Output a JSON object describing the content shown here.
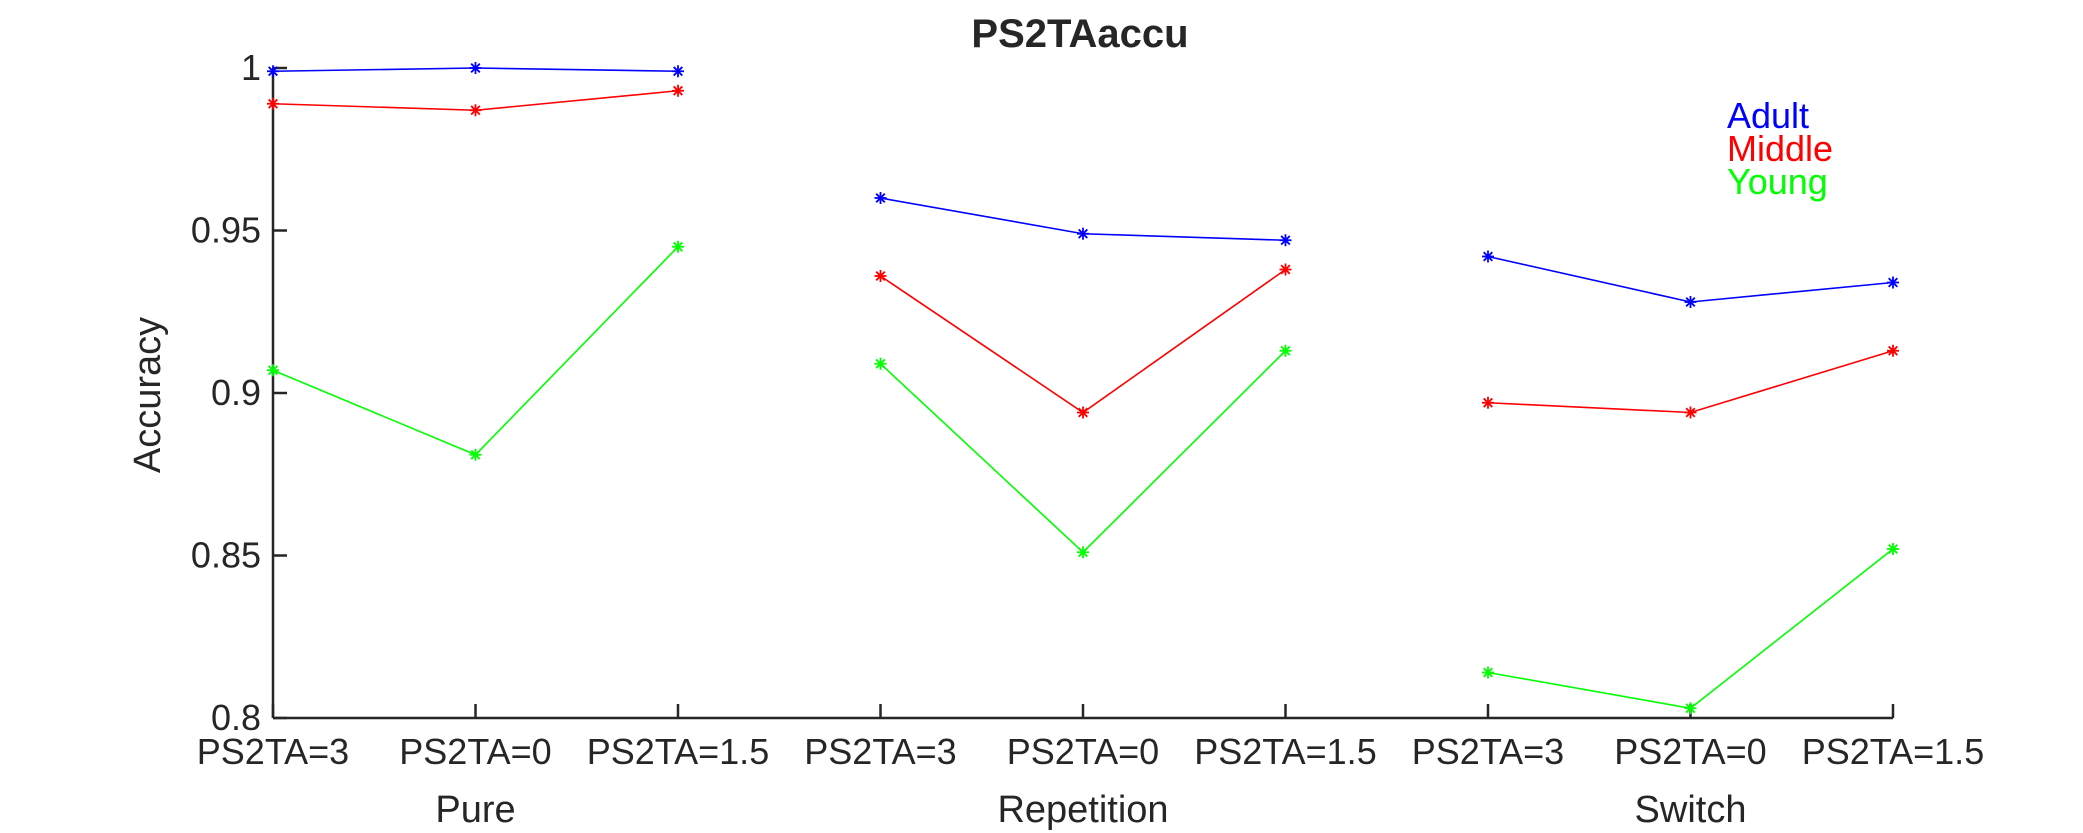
{
  "chart_data": {
    "type": "line",
    "title": "PS2TAaccu",
    "ylabel": "Accuracy",
    "xlabel": "",
    "ylim": [
      0.8,
      1.0
    ],
    "yticks": [
      "0.8",
      "0.85",
      "0.9",
      "0.95",
      "1"
    ],
    "grid": false,
    "legend_position": "top-right",
    "groups": [
      {
        "label": "Pure",
        "categories": [
          "PS2TA=3",
          "PS2TA=0",
          "PS2TA=1.5"
        ],
        "series": [
          {
            "name": "Adult",
            "color": "#0000ff",
            "values": [
              0.999,
              1.0,
              0.999
            ]
          },
          {
            "name": "Middle",
            "color": "#ff0000",
            "values": [
              0.989,
              0.987,
              0.993
            ]
          },
          {
            "name": "Young",
            "color": "#00ff00",
            "values": [
              0.907,
              0.881,
              0.945
            ]
          }
        ]
      },
      {
        "label": "Repetition",
        "categories": [
          "PS2TA=3",
          "PS2TA=0",
          "PS2TA=1.5"
        ],
        "series": [
          {
            "name": "Adult",
            "color": "#0000ff",
            "values": [
              0.96,
              0.949,
              0.947
            ]
          },
          {
            "name": "Middle",
            "color": "#ff0000",
            "values": [
              0.936,
              0.894,
              0.938
            ]
          },
          {
            "name": "Young",
            "color": "#00ff00",
            "values": [
              0.909,
              0.851,
              0.913
            ]
          }
        ]
      },
      {
        "label": "Switch",
        "categories": [
          "PS2TA=3",
          "PS2TA=0",
          "PS2TA=1.5"
        ],
        "series": [
          {
            "name": "Adult",
            "color": "#0000ff",
            "values": [
              0.942,
              0.928,
              0.934
            ]
          },
          {
            "name": "Middle",
            "color": "#ff0000",
            "values": [
              0.897,
              0.894,
              0.913
            ]
          },
          {
            "name": "Young",
            "color": "#00ff00",
            "values": [
              0.814,
              0.803,
              0.852
            ]
          }
        ]
      }
    ],
    "legend": [
      {
        "name": "Adult",
        "color": "#0000ff"
      },
      {
        "name": "Middle",
        "color": "#ff0000"
      },
      {
        "name": "Young",
        "color": "#00ff00"
      }
    ]
  }
}
